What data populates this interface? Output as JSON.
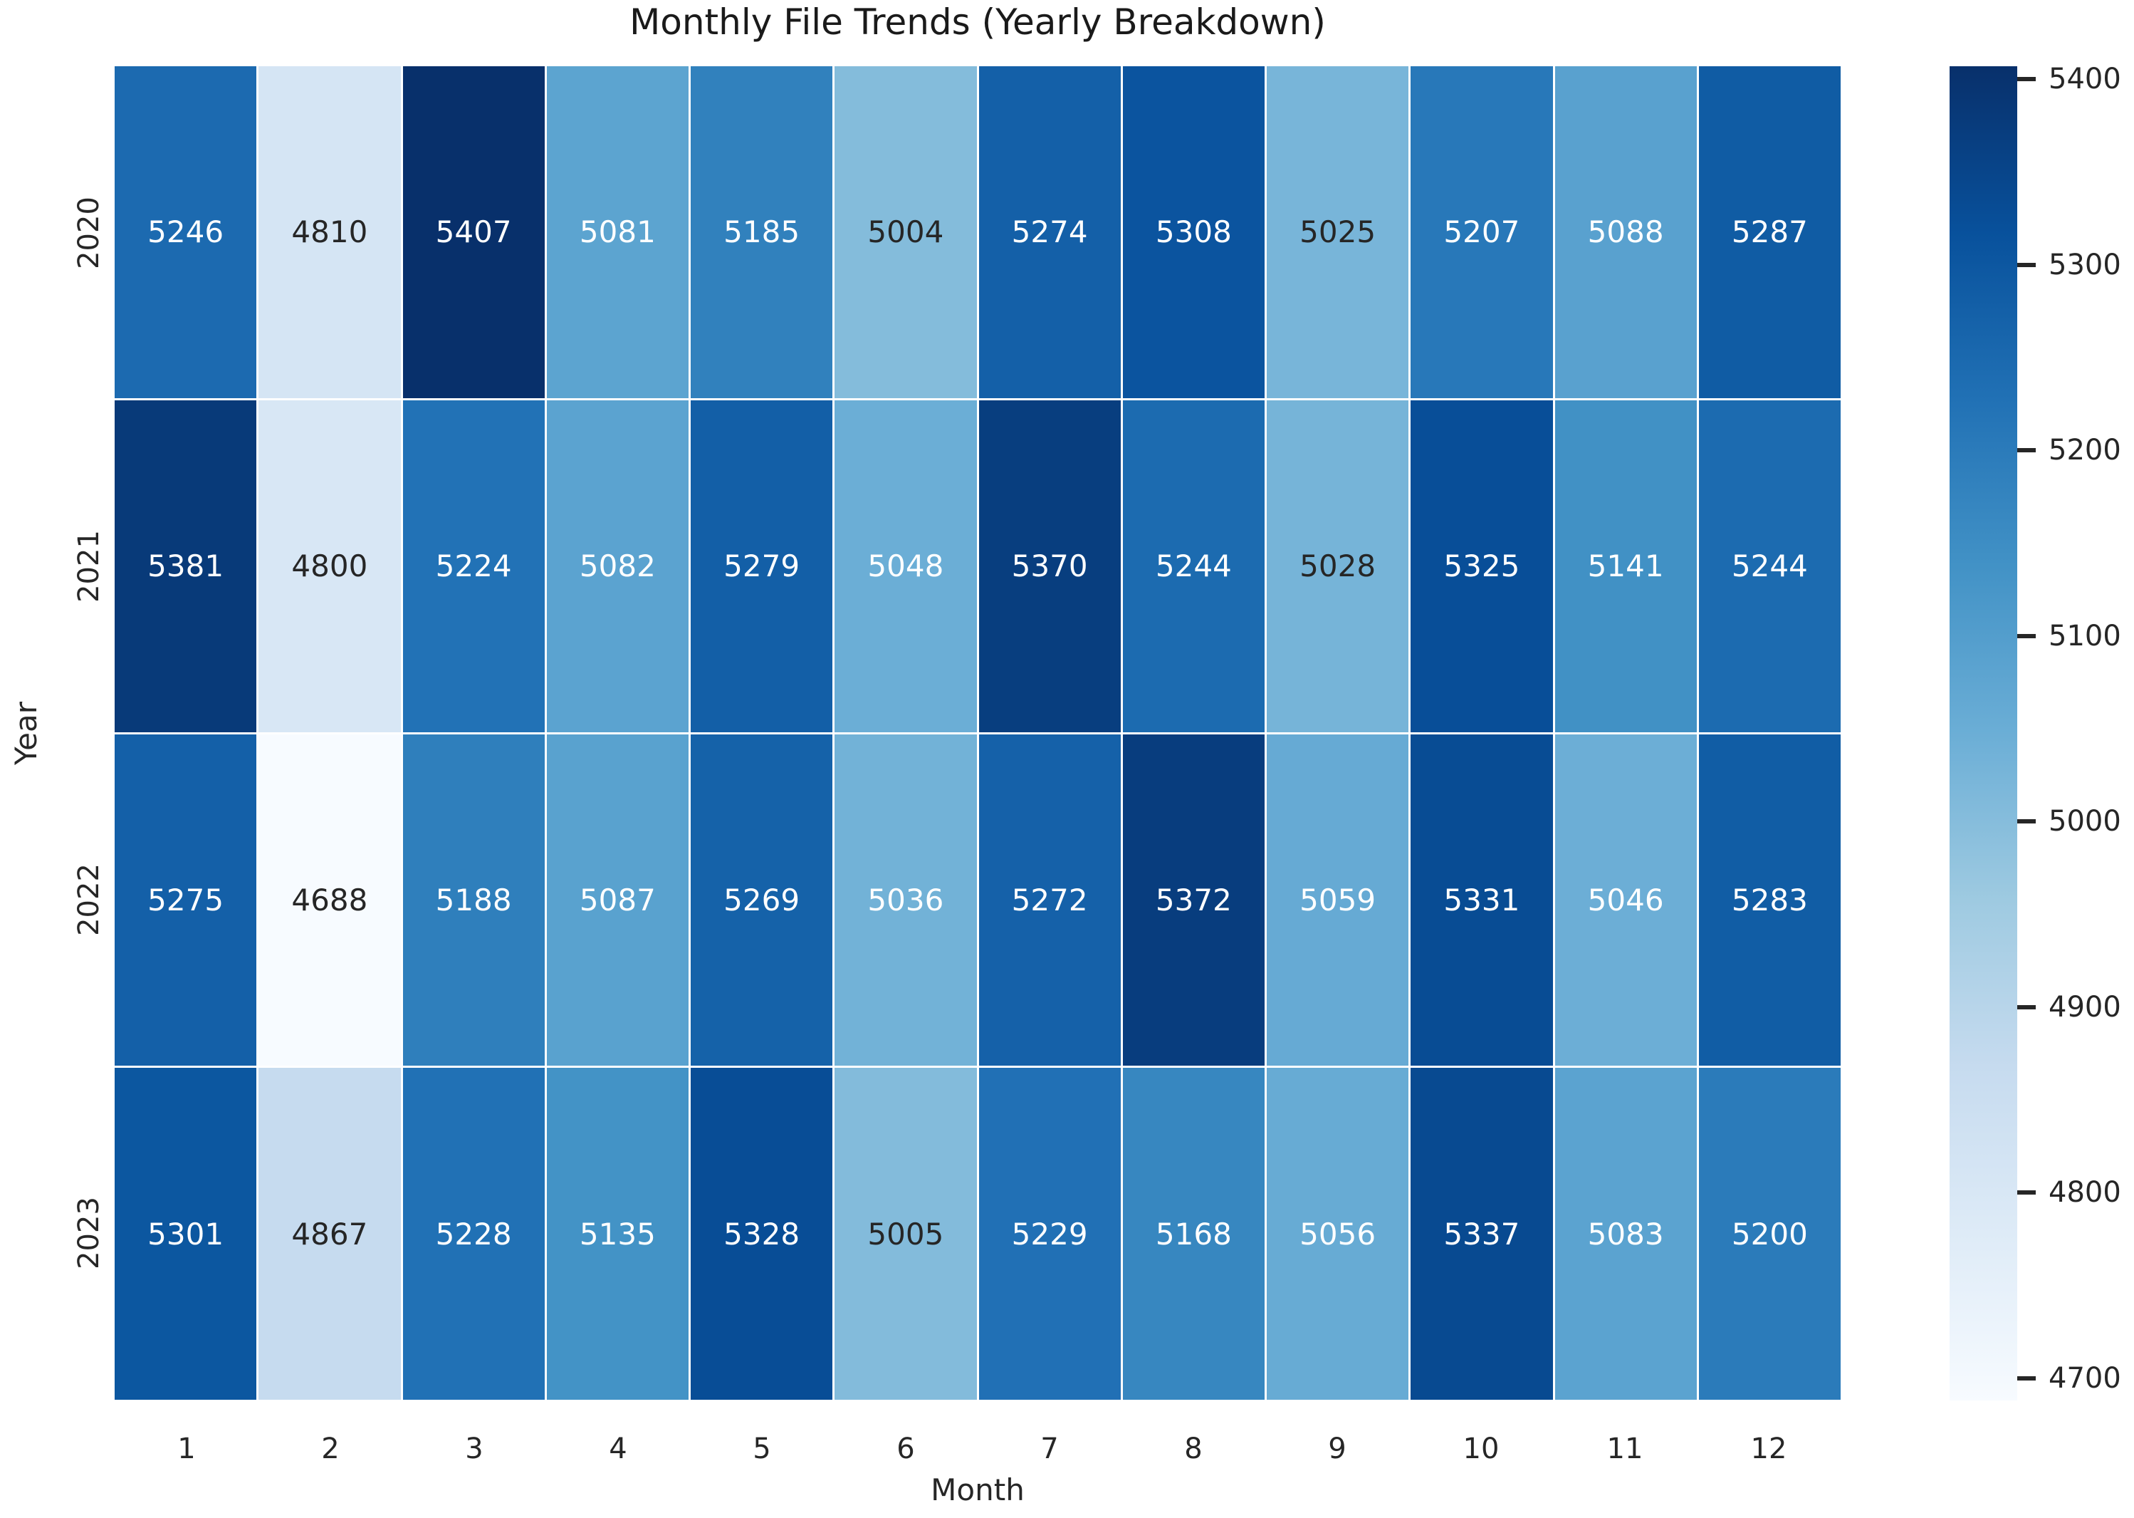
{
  "title": "Monthly File Trends (Yearly Breakdown)",
  "chart_data": {
    "type": "heatmap",
    "title": "Monthly File Trends (Yearly Breakdown)",
    "xlabel": "Month",
    "ylabel": "Year",
    "x_categories": [
      "1",
      "2",
      "3",
      "4",
      "5",
      "6",
      "7",
      "8",
      "9",
      "10",
      "11",
      "12"
    ],
    "y_categories": [
      "2020",
      "2021",
      "2022",
      "2023"
    ],
    "values": [
      [
        5246,
        4810,
        5407,
        5081,
        5185,
        5004,
        5274,
        5308,
        5025,
        5207,
        5088,
        5287
      ],
      [
        5381,
        4800,
        5224,
        5082,
        5279,
        5048,
        5370,
        5244,
        5028,
        5325,
        5141,
        5244
      ],
      [
        5275,
        4688,
        5188,
        5087,
        5269,
        5036,
        5272,
        5372,
        5059,
        5331,
        5046,
        5283
      ],
      [
        5301,
        4867,
        5228,
        5135,
        5328,
        5005,
        5229,
        5168,
        5056,
        5337,
        5083,
        5200
      ]
    ],
    "annotations": true,
    "colormap": "Blues",
    "colormap_anchors": [
      "#f7fbff",
      "#deebf7",
      "#c6dbef",
      "#9ecae1",
      "#6baed6",
      "#4292c6",
      "#2171b5",
      "#08519c",
      "#08306b"
    ],
    "vmin": 4688,
    "vmax": 5407,
    "colorbar_ticks": [
      5400,
      5300,
      5200,
      5100,
      5000,
      4900,
      4800,
      4700
    ],
    "legend_position": "right",
    "grid": false,
    "colors": {
      "background": "#ffffff",
      "cell_gap": "#ffffff",
      "dark_text": "#262626",
      "light_text": "#ffffff",
      "title_text": "#1a1a1a"
    }
  }
}
